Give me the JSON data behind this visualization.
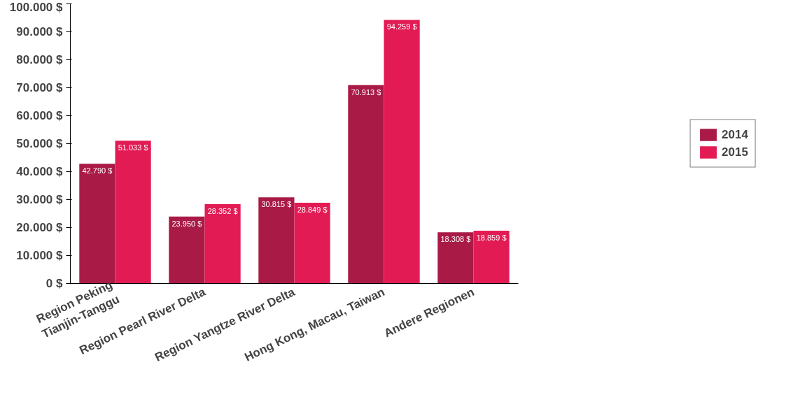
{
  "chart_data": {
    "type": "bar",
    "categories": [
      "Region Peking\nTianjin-Tanggu",
      "Region Pearl River Delta",
      "Region Yangtze River Delta",
      "Hong Kong, Macau, Taiwan",
      "Andere Regionen"
    ],
    "series": [
      {
        "name": "2014",
        "color": "#a91a47",
        "values": [
          42790,
          23950,
          30815,
          70913,
          18308
        ],
        "value_labels": [
          "42.790 $",
          "23.950 $",
          "30.815 $",
          "70.913 $",
          "18.308 $"
        ]
      },
      {
        "name": "2015",
        "color": "#e31b54",
        "values": [
          51033,
          28352,
          28849,
          94259,
          18859
        ],
        "value_labels": [
          "51.033 $",
          "28.352 $",
          "28.849 $",
          "94.259 $",
          "18.859 $"
        ]
      }
    ],
    "ylim": [
      0,
      100000
    ],
    "yticks": [
      {
        "value": 0,
        "label": "0 $"
      },
      {
        "value": 10000,
        "label": "10.000 $"
      },
      {
        "value": 20000,
        "label": "20.000 $"
      },
      {
        "value": 30000,
        "label": "30.000 $"
      },
      {
        "value": 40000,
        "label": "40.000 $"
      },
      {
        "value": 50000,
        "label": "50.000 $"
      },
      {
        "value": 60000,
        "label": "60.000 $"
      },
      {
        "value": 70000,
        "label": "70.000 $"
      },
      {
        "value": 80000,
        "label": "80.000 $"
      },
      {
        "value": 90000,
        "label": "90.000 $"
      },
      {
        "value": 100000,
        "label": "100.000 $"
      }
    ],
    "grid": false,
    "legend": "right"
  }
}
